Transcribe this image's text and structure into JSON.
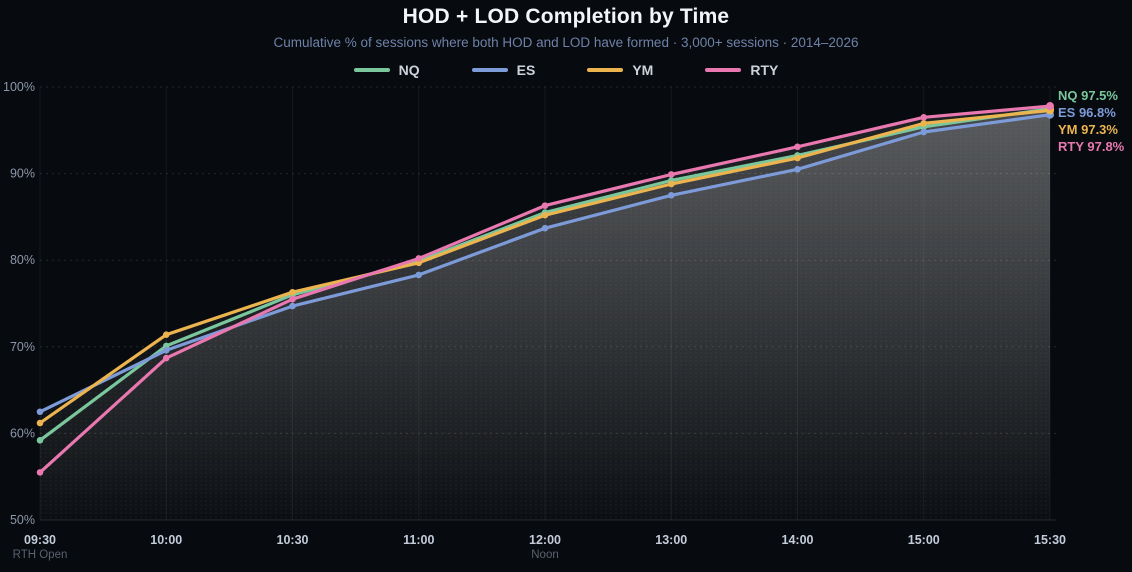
{
  "header": {
    "title": "HOD + LOD Completion by Time",
    "subtitle": "Cumulative % of sessions where both HOD and LOD have formed · 3,000+ sessions · 2014–2026"
  },
  "colors": {
    "background": "#070a0e",
    "title": "#f2f5f9",
    "subtitle": "#6e82a8",
    "y_tick": "#8d97ab",
    "x_tick": "#c3ccdb",
    "x_context": "#5a6270",
    "grid_h": "rgba(255,255,255,0.12)",
    "grid_v": "rgba(255,255,255,0.06)"
  },
  "chart_data": {
    "type": "line",
    "title": "HOD + LOD Completion by Time",
    "subtitle": "Cumulative % of sessions where both HOD and LOD have formed · 3,000+ sessions · 2014–2026",
    "categories": [
      "09:30",
      "10:00",
      "10:30",
      "11:00",
      "12:00",
      "13:00",
      "14:00",
      "15:00",
      "15:30"
    ],
    "x_context_labels": [
      {
        "tick": "09:30",
        "text": "RTH Open"
      },
      {
        "tick": "12:00",
        "text": "Noon"
      }
    ],
    "y_ticks": [
      50,
      60,
      70,
      80,
      90,
      100
    ],
    "y_tick_labels": [
      "50%",
      "60%",
      "70%",
      "80%",
      "90%",
      "100%"
    ],
    "ylim": [
      50,
      100
    ],
    "ylabel": "Cumulative % of sessions",
    "grid": true,
    "legend_position": "top",
    "series": [
      {
        "name": "NQ",
        "color": "#7ac79d",
        "values": [
          59.2,
          70.1,
          76.0,
          79.9,
          85.5,
          89.2,
          92.1,
          95.4,
          97.5
        ]
      },
      {
        "name": "ES",
        "color": "#7e9bd9",
        "values": [
          62.5,
          69.6,
          74.7,
          78.3,
          83.7,
          87.5,
          90.5,
          94.8,
          96.8
        ]
      },
      {
        "name": "YM",
        "color": "#ecb44e",
        "values": [
          61.2,
          71.4,
          76.3,
          79.7,
          85.2,
          88.8,
          91.8,
          95.8,
          97.3
        ]
      },
      {
        "name": "RTY",
        "color": "#e878af",
        "values": [
          55.5,
          68.7,
          75.5,
          80.2,
          86.3,
          89.9,
          93.1,
          96.5,
          97.8
        ]
      }
    ],
    "end_labels": [
      {
        "text": "NQ 97.5%"
      },
      {
        "text": "ES 96.8%"
      },
      {
        "text": "YM 97.3%"
      },
      {
        "text": "RTY 97.8%"
      }
    ]
  }
}
